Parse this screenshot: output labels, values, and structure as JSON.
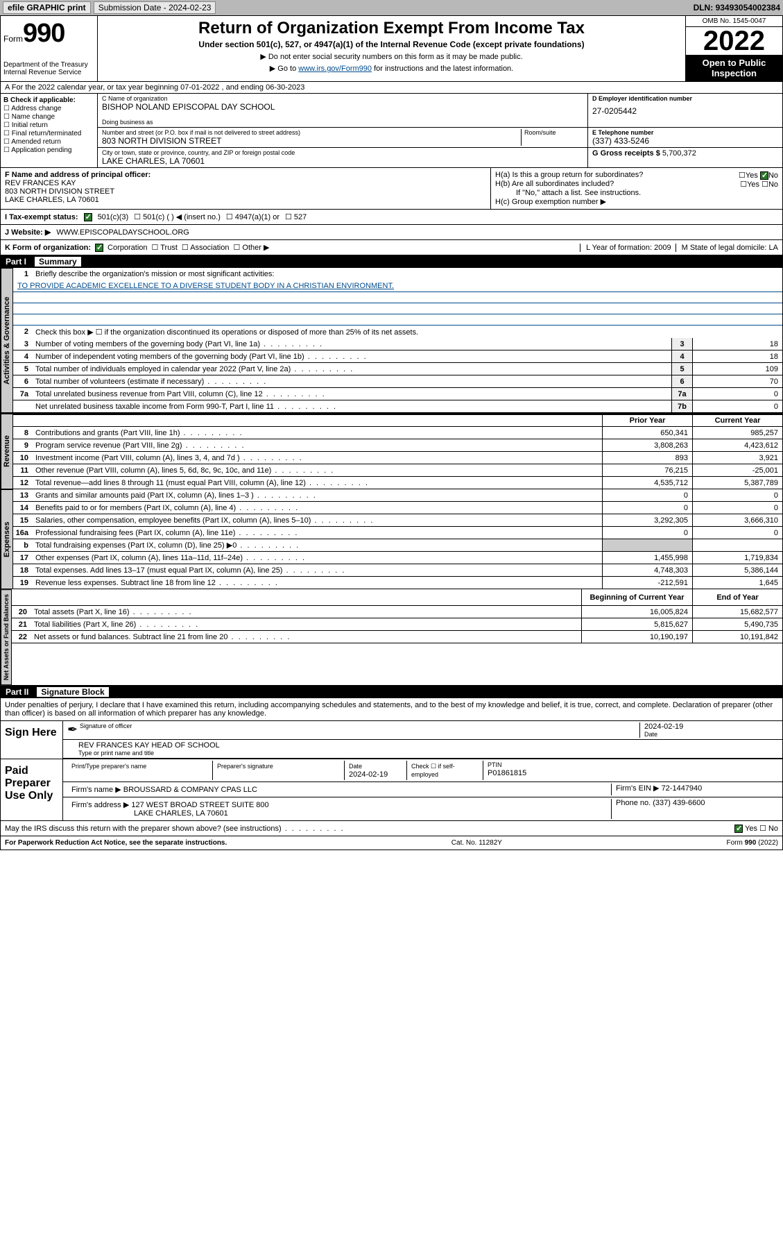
{
  "topbar": {
    "efile": "efile GRAPHIC print",
    "subdate_label": "Submission Date - ",
    "subdate": "2024-02-23",
    "dln_label": "DLN: ",
    "dln": "93493054002384"
  },
  "header": {
    "form": "Form",
    "num": "990",
    "dept": "Department of the Treasury\nInternal Revenue Service",
    "title": "Return of Organization Exempt From Income Tax",
    "subtitle": "Under section 501(c), 527, or 4947(a)(1) of the Internal Revenue Code (except private foundations)",
    "instr1": "▶ Do not enter social security numbers on this form as it may be made public.",
    "instr2_pre": "▶ Go to ",
    "instr2_link": "www.irs.gov/Form990",
    "instr2_post": " for instructions and the latest information.",
    "omb": "OMB No. 1545-0047",
    "year": "2022",
    "open_public": "Open to Public Inspection"
  },
  "row_a": "A For the 2022 calendar year, or tax year beginning 07-01-2022     , and ending 06-30-2023",
  "box_b": {
    "hdr": "B Check if applicable:",
    "items": [
      "Address change",
      "Name change",
      "Initial return",
      "Final return/terminated",
      "Amended return",
      "Application pending"
    ]
  },
  "box_c": {
    "name_label": "C Name of organization",
    "name": "BISHOP NOLAND EPISCOPAL DAY SCHOOL",
    "dba_label": "Doing business as",
    "street_label": "Number and street (or P.O. box if mail is not delivered to street address)",
    "room_label": "Room/suite",
    "street": "803 NORTH DIVISION STREET",
    "city_label": "City or town, state or province, country, and ZIP or foreign postal code",
    "city": "LAKE CHARLES, LA   70601"
  },
  "box_d": {
    "label": "D Employer identification number",
    "value": "27-0205442"
  },
  "box_e": {
    "label": "E Telephone number",
    "value": "(337) 433-5246"
  },
  "box_g": {
    "label": "G Gross receipts $ ",
    "value": "5,700,372"
  },
  "box_f": {
    "label": "F  Name and address of principal officer:",
    "name": "REV FRANCES KAY",
    "street": "803 NORTH DIVISION STREET",
    "city": "LAKE CHARLES, LA   70601"
  },
  "box_h": {
    "a": "H(a)  Is this a group return for subordinates?",
    "b": "H(b)  Are all subordinates included?",
    "b_note": "If \"No,\" attach a list. See instructions.",
    "c": "H(c)  Group exemption number ▶",
    "yes": "Yes",
    "no": "No"
  },
  "row_i": {
    "label": "I    Tax-exempt status:",
    "opt1": "501(c)(3)",
    "opt2": "501(c) (   ) ◀ (insert no.)",
    "opt3": "4947(a)(1) or",
    "opt4": "527"
  },
  "row_j": {
    "label": "J    Website: ▶  ",
    "value": "WWW.EPISCOPALDAYSCHOOL.ORG"
  },
  "row_k": {
    "label": "K Form of organization:",
    "opts": [
      "Corporation",
      "Trust",
      "Association",
      "Other ▶"
    ]
  },
  "row_l": "L Year of formation: 2009",
  "row_m": "M State of legal domicile: LA",
  "part1": {
    "num": "Part I",
    "title": "Summary"
  },
  "summary": {
    "q1": "Briefly describe the organization's mission or most significant activities:",
    "mission": "TO PROVIDE ACADEMIC EXCELLENCE TO A DIVERSE STUDENT BODY IN A CHRISTIAN ENVIRONMENT.",
    "q2": "Check this box ▶ ☐  if the organization discontinued its operations or disposed of more than 25% of its net assets.",
    "lines": [
      {
        "n": "3",
        "d": "Number of voting members of the governing body (Part VI, line 1a)",
        "b": "3",
        "v": "18"
      },
      {
        "n": "4",
        "d": "Number of independent voting members of the governing body (Part VI, line 1b)",
        "b": "4",
        "v": "18"
      },
      {
        "n": "5",
        "d": "Total number of individuals employed in calendar year 2022 (Part V, line 2a)",
        "b": "5",
        "v": "109"
      },
      {
        "n": "6",
        "d": "Total number of volunteers (estimate if necessary)",
        "b": "6",
        "v": "70"
      },
      {
        "n": "7a",
        "d": "Total unrelated business revenue from Part VIII, column (C), line 12",
        "b": "7a",
        "v": "0"
      },
      {
        "n": "",
        "d": "Net unrelated business taxable income from Form 990-T, Part I, line 11",
        "b": "7b",
        "v": "0"
      }
    ],
    "hdr_prior": "Prior Year",
    "hdr_current": "Current Year",
    "rev": [
      {
        "n": "8",
        "d": "Contributions and grants (Part VIII, line 1h)",
        "p": "650,341",
        "c": "985,257"
      },
      {
        "n": "9",
        "d": "Program service revenue (Part VIII, line 2g)",
        "p": "3,808,263",
        "c": "4,423,612"
      },
      {
        "n": "10",
        "d": "Investment income (Part VIII, column (A), lines 3, 4, and 7d )",
        "p": "893",
        "c": "3,921"
      },
      {
        "n": "11",
        "d": "Other revenue (Part VIII, column (A), lines 5, 6d, 8c, 9c, 10c, and 11e)",
        "p": "76,215",
        "c": "-25,001"
      },
      {
        "n": "12",
        "d": "Total revenue—add lines 8 through 11 (must equal Part VIII, column (A), line 12)",
        "p": "4,535,712",
        "c": "5,387,789"
      }
    ],
    "exp": [
      {
        "n": "13",
        "d": "Grants and similar amounts paid (Part IX, column (A), lines 1–3 )",
        "p": "0",
        "c": "0"
      },
      {
        "n": "14",
        "d": "Benefits paid to or for members (Part IX, column (A), line 4)",
        "p": "0",
        "c": "0"
      },
      {
        "n": "15",
        "d": "Salaries, other compensation, employee benefits (Part IX, column (A), lines 5–10)",
        "p": "3,292,305",
        "c": "3,666,310"
      },
      {
        "n": "16a",
        "d": "Professional fundraising fees (Part IX, column (A), line 11e)",
        "p": "0",
        "c": "0"
      },
      {
        "n": "b",
        "d": "Total fundraising expenses (Part IX, column (D), line 25) ▶0",
        "p": "",
        "c": "",
        "shaded": true
      },
      {
        "n": "17",
        "d": "Other expenses (Part IX, column (A), lines 11a–11d, 11f–24e)",
        "p": "1,455,998",
        "c": "1,719,834"
      },
      {
        "n": "18",
        "d": "Total expenses. Add lines 13–17 (must equal Part IX, column (A), line 25)",
        "p": "4,748,303",
        "c": "5,386,144"
      },
      {
        "n": "19",
        "d": "Revenue less expenses. Subtract line 18 from line 12",
        "p": "-212,591",
        "c": "1,645"
      }
    ],
    "hdr_begin": "Beginning of Current Year",
    "hdr_end": "End of Year",
    "bal": [
      {
        "n": "20",
        "d": "Total assets (Part X, line 16)",
        "p": "16,005,824",
        "c": "15,682,577"
      },
      {
        "n": "21",
        "d": "Total liabilities (Part X, line 26)",
        "p": "5,815,627",
        "c": "5,490,735"
      },
      {
        "n": "22",
        "d": "Net assets or fund balances. Subtract line 21 from line 20",
        "p": "10,190,197",
        "c": "10,191,842"
      }
    ]
  },
  "labels": {
    "gov": "Activities & Governance",
    "rev": "Revenue",
    "exp": "Expenses",
    "bal": "Net Assets or Fund Balances"
  },
  "part2": {
    "num": "Part II",
    "title": "Signature Block"
  },
  "sig": {
    "perjury": "Under penalties of perjury, I declare that I have examined this return, including accompanying schedules and statements, and to the best of my knowledge and belief, it is true, correct, and complete. Declaration of preparer (other than officer) is based on all information of which preparer has any knowledge.",
    "sign_here": "Sign Here",
    "sig_officer": "Signature of officer",
    "sig_date": "2024-02-19",
    "date_lbl": "Date",
    "name_title": "REV FRANCES KAY  HEAD OF SCHOOL",
    "name_title_lbl": "Type or print name and title",
    "paid": "Paid Preparer Use Only",
    "prep_name_lbl": "Print/Type preparer's name",
    "prep_sig_lbl": "Preparer's signature",
    "prep_date_lbl": "Date",
    "prep_date": "2024-02-19",
    "check_lbl": "Check ☐ if self-employed",
    "ptin_lbl": "PTIN",
    "ptin": "P01861815",
    "firm_name_lbl": "Firm's name      ▶ ",
    "firm_name": "BROUSSARD & COMPANY CPAS LLC",
    "firm_ein_lbl": "Firm's EIN ▶ ",
    "firm_ein": "72-1447940",
    "firm_addr_lbl": "Firm's address ▶ ",
    "firm_addr1": "127 WEST BROAD STREET SUITE 800",
    "firm_addr2": "LAKE CHARLES, LA   70601",
    "phone_lbl": "Phone no. ",
    "phone": "(337) 439-6600",
    "discuss": "May the IRS discuss this return with the preparer shown above? (see instructions)",
    "yes": "Yes",
    "no": "No"
  },
  "footer": {
    "left": "For Paperwork Reduction Act Notice, see the separate instructions.",
    "mid": "Cat. No. 11282Y",
    "right": "Form 990 (2022)"
  }
}
